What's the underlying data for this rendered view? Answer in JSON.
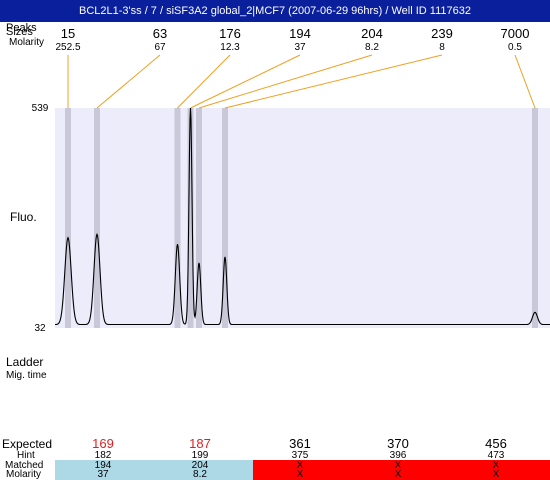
{
  "title": "BCL2L1-3'ss / 7 / siSF3A2 global_2|MCF7 (2007-06-29 96hrs) / Well ID 1117632",
  "left_labels": {
    "peaks": "Peaks",
    "sizes": "Sizes",
    "molarity": "Molarity",
    "fluo": "Fluo.",
    "ladder": "Ladder",
    "mig_time": "Mig. time",
    "expected": "Expected",
    "hint": "Hint",
    "matched": "Matched",
    "molarity_bottom": "Molarity"
  },
  "colors": {
    "title_bg": "#0a1f9c",
    "plot_bg": "#ececfb",
    "peak_band": "#c8c8d8",
    "connector": "#f0a020",
    "trace": "#000000",
    "expected_highlight": "#e02020",
    "matched_bg": "#add8e6",
    "unmatched_bg": "#ff0000"
  },
  "chart_data": {
    "type": "line",
    "ylabel": "Fluo.",
    "ylim": [
      32,
      539
    ],
    "y_ticks": [
      "539",
      "32"
    ],
    "peaks": [
      {
        "size": "15",
        "molarity": "252.5"
      },
      {
        "size": "63",
        "molarity": "67"
      },
      {
        "size": "176",
        "molarity": "12.3"
      },
      {
        "size": "194",
        "molarity": "37"
      },
      {
        "size": "204",
        "molarity": "8.2"
      },
      {
        "size": "239",
        "molarity": "8"
      },
      {
        "size": "7000",
        "molarity": "0.5"
      }
    ],
    "trace": {
      "baseline": 40,
      "peaks": [
        {
          "mig": 68,
          "height": 240,
          "width": 3.2
        },
        {
          "mig": 97,
          "height": 248,
          "width": 3.0
        },
        {
          "mig": 177.5,
          "height": 225,
          "width": 2.2
        },
        {
          "mig": 190.5,
          "height": 539,
          "width": 1.5
        },
        {
          "mig": 199,
          "height": 182,
          "width": 1.8
        },
        {
          "mig": 225,
          "height": 196,
          "width": 1.8
        },
        {
          "mig": 535,
          "height": 68,
          "width": 2.5
        }
      ]
    },
    "expected": [
      {
        "value": "169",
        "hint": "182",
        "matched": "194",
        "molarity": "37",
        "status": "matched"
      },
      {
        "value": "187",
        "hint": "199",
        "matched": "204",
        "molarity": "8.2",
        "status": "matched"
      },
      {
        "value": "361",
        "hint": "375",
        "matched": "X",
        "molarity": "X",
        "status": "unmatched"
      },
      {
        "value": "370",
        "hint": "396",
        "matched": "X",
        "molarity": "X",
        "status": "unmatched"
      },
      {
        "value": "456",
        "hint": "473",
        "matched": "X",
        "molarity": "X",
        "status": "unmatched"
      }
    ]
  }
}
